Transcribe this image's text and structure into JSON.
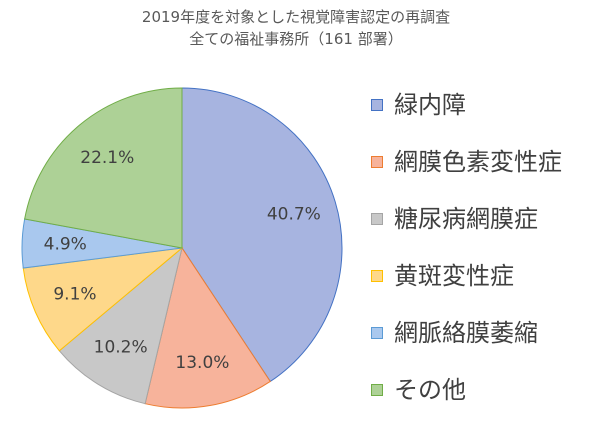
{
  "chart_data": {
    "type": "pie",
    "title_lines": [
      "2019年度を対象とした視覚障害認定の再調査",
      "全ての福祉事務所（161 部署）"
    ],
    "categories": [
      "緑内障",
      "網膜色素変性症",
      "糖尿病網膜症",
      "黄斑変性症",
      "網脈絡膜萎縮",
      "その他"
    ],
    "values": [
      40.7,
      13.0,
      10.2,
      9.1,
      4.9,
      22.1
    ],
    "value_labels": [
      "40.7%",
      "13.0%",
      "10.2%",
      "9.1%",
      "4.9%",
      "22.1%"
    ],
    "colors": [
      "#a7b4e0",
      "#f7b39b",
      "#c8c8c8",
      "#fed88a",
      "#a9c8ee",
      "#add196"
    ],
    "border_colors": [
      "#4472c4",
      "#ed7d31",
      "#a5a5a5",
      "#ffc000",
      "#5b9bd5",
      "#70ad47"
    ],
    "start_angle": "12 o'clock",
    "direction": "clockwise",
    "legend_position": "right"
  }
}
